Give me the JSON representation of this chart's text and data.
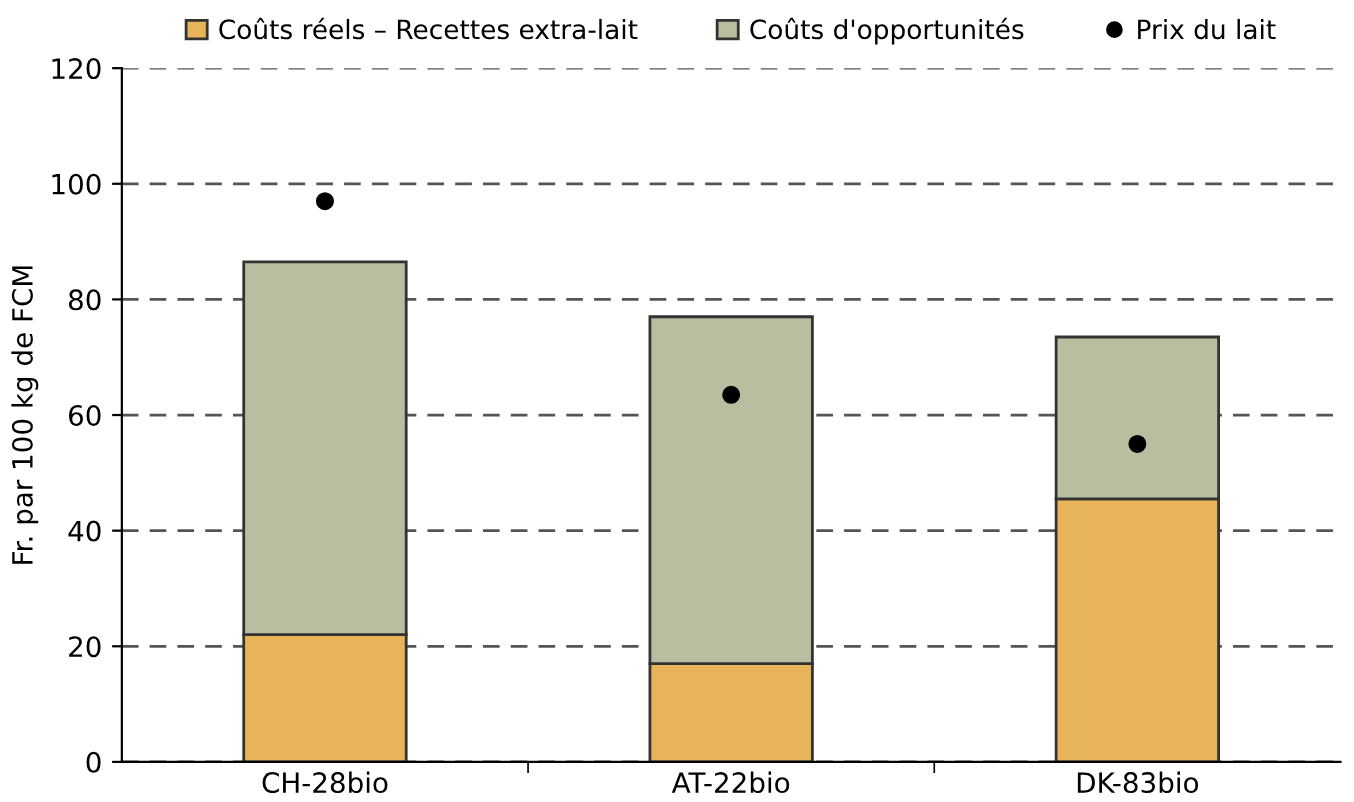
{
  "chart_data": {
    "type": "bar",
    "stacked": true,
    "categories": [
      "CH-28bio",
      "AT-22bio",
      "DK-83bio"
    ],
    "ylabel": "Fr. par 100 kg de FCM",
    "ylim": [
      0,
      120
    ],
    "yticks": [
      0,
      20,
      40,
      60,
      80,
      100,
      120
    ],
    "grid": "y",
    "legend": "top",
    "series": [
      {
        "name": "Coûts réels – Recettes extra-lait",
        "color": "#e8b45a",
        "values": [
          22,
          17,
          45.5
        ]
      },
      {
        "name": "Coûts d'opportunités",
        "color": "#b8bea0",
        "values": [
          64.5,
          60,
          28
        ]
      },
      {
        "name": "Prix du lait",
        "type": "scatter",
        "color": "#000000",
        "marker": "circle",
        "x": [
          "CH-28bio",
          "AT-22bio",
          "DK-83bio"
        ],
        "values": [
          97,
          63.5,
          55
        ]
      }
    ]
  }
}
